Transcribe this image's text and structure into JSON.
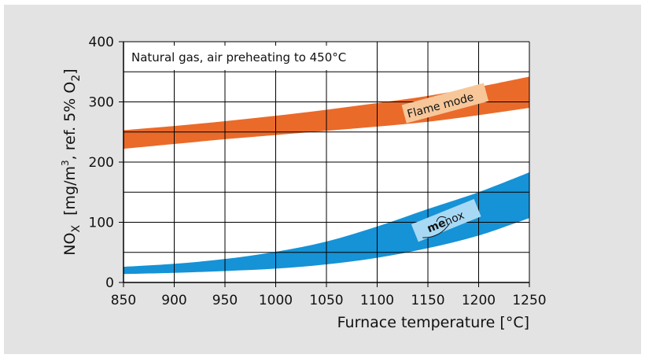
{
  "colors": {
    "panel_bg": "#e3e3e3",
    "plot_bg": "#ffffff",
    "grid": "#000000",
    "flame_band": "#ea6a2a",
    "flame_label_bg": "#f7c79a",
    "menox_band": "#1692d6",
    "menox_label_bg": "#a7d9f5"
  },
  "chart_data": {
    "type": "area",
    "note": "Natural gas, air preheating to 450°C",
    "xlabel": "Furnace temperature [°C]",
    "ylabel": {
      "main": "NO",
      "sub": "X",
      "rest": "  [mg/m",
      "sup": "3",
      "rest2": ", ref. 5% O",
      "sub2": "2",
      "close": "]"
    },
    "xlim": [
      850,
      1250
    ],
    "ylim": [
      0,
      400
    ],
    "x_ticks": [
      "850",
      "900",
      "950",
      "1000",
      "1050",
      "1100",
      "1150",
      "1200",
      "1250"
    ],
    "y_ticks": [
      "0",
      "100",
      "200",
      "300",
      "400"
    ],
    "grid": true,
    "series": [
      {
        "name": "Flame mode",
        "x": [
          850,
          900,
          950,
          1000,
          1050,
          1100,
          1150,
          1200,
          1250
        ],
        "lower": [
          222,
          230,
          238,
          245,
          252,
          259,
          267,
          278,
          290
        ],
        "upper": [
          253,
          260,
          268,
          277,
          287,
          298,
          310,
          325,
          342
        ]
      },
      {
        "name_logo": {
          "bold": "me",
          "rest": "nox"
        },
        "x": [
          850,
          900,
          950,
          1000,
          1050,
          1100,
          1150,
          1200,
          1250
        ],
        "lower": [
          14,
          16,
          19,
          23,
          30,
          41,
          57,
          78,
          107
        ],
        "upper": [
          26,
          31,
          39,
          51,
          68,
          93,
          122,
          150,
          183
        ]
      }
    ]
  }
}
